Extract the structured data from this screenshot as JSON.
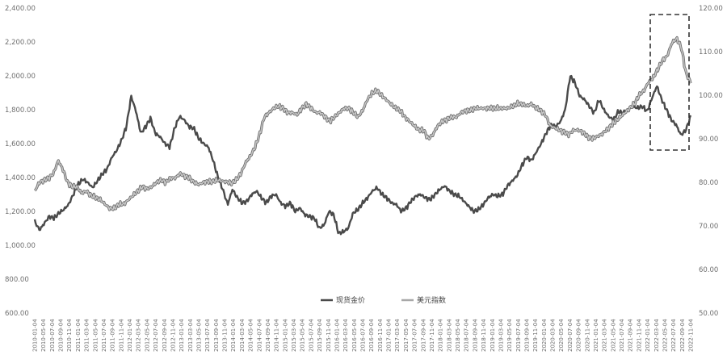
{
  "chart_data": {
    "type": "line",
    "title": "",
    "xlabel": "",
    "ylabel_left": "",
    "ylabel_right": "",
    "ylim_left": [
      600,
      2400
    ],
    "ylim_right": [
      50,
      120
    ],
    "grid": false,
    "legend_position": "bottom-center",
    "left_ticks": [
      "2,400.00",
      "2,200.00",
      "2,000.00",
      "1,800.00",
      "1,600.00",
      "1,400.00",
      "1,200.00",
      "1,000.00",
      "800.00",
      "600.00"
    ],
    "right_ticks": [
      "120.00",
      "110.00",
      "100.00",
      "90.00",
      "80.00",
      "70.00",
      "60.00",
      "50.00"
    ],
    "x_ticks": [
      "2010-01-04",
      "2010-05-04",
      "2010-07-04",
      "2010-09-04",
      "2010-11-04",
      "2011-01-04",
      "2011-03-04",
      "2011-05-04",
      "2011-07-04",
      "2011-09-04",
      "2011-11-04",
      "2012-01-04",
      "2012-03-04",
      "2012-05-04",
      "2012-07-04",
      "2012-09-04",
      "2012-11-04",
      "2013-01-04",
      "2013-03-04",
      "2013-05-04",
      "2013-07-04",
      "2013-09-04",
      "2013-11-04",
      "2014-01-04",
      "2014-03-04",
      "2014-05-04",
      "2014-07-04",
      "2014-09-04",
      "2014-11-04",
      "2015-01-04",
      "2015-03-04",
      "2015-05-04",
      "2015-07-04",
      "2015-09-04",
      "2015-11-04",
      "2016-01-04",
      "2016-03-04",
      "2016-05-04",
      "2016-07-04",
      "2016-09-04",
      "2016-11-04",
      "2017-01-04",
      "2017-03-04",
      "2017-05-04",
      "2017-07-04",
      "2017-09-04",
      "2017-11-04",
      "2018-01-04",
      "2018-03-04",
      "2018-05-04",
      "2018-07-04",
      "2018-09-04",
      "2018-11-04",
      "2019-01-04",
      "2019-03-04",
      "2019-05-04",
      "2019-07-04",
      "2019-09-04",
      "2019-11-04",
      "2020-01-04",
      "2020-03-04",
      "2020-05-04",
      "2020-07-04",
      "2020-09-04",
      "2020-11-04",
      "2021-01-04",
      "2021-03-04",
      "2021-05-04",
      "2021-07-04",
      "2021-09-04",
      "2021-11-04",
      "2022-01-04",
      "2022-03-04",
      "2022-05-04",
      "2022-07-04",
      "2022-09-04",
      "2022-11-04"
    ],
    "series": [
      {
        "name": "现货金价",
        "axis": "left",
        "color": "#4a4a4a",
        "values": [
          1140,
          1090,
          1130,
          1170,
          1160,
          1190,
          1210,
          1240,
          1300,
          1360,
          1390,
          1370,
          1340,
          1380,
          1420,
          1450,
          1520,
          1560,
          1620,
          1700,
          1880,
          1790,
          1660,
          1700,
          1750,
          1660,
          1640,
          1600,
          1580,
          1690,
          1760,
          1740,
          1700,
          1690,
          1630,
          1600,
          1580,
          1500,
          1400,
          1330,
          1240,
          1330,
          1280,
          1250,
          1260,
          1300,
          1320,
          1280,
          1250,
          1290,
          1300,
          1250,
          1230,
          1250,
          1200,
          1220,
          1180,
          1170,
          1160,
          1100,
          1120,
          1200,
          1180,
          1070,
          1080,
          1100,
          1190,
          1210,
          1250,
          1280,
          1320,
          1340,
          1300,
          1280,
          1250,
          1240,
          1200,
          1220,
          1260,
          1290,
          1300,
          1280,
          1270,
          1300,
          1330,
          1350,
          1320,
          1300,
          1290,
          1260,
          1230,
          1200,
          1210,
          1240,
          1280,
          1300,
          1290,
          1300,
          1350,
          1380,
          1410,
          1470,
          1520,
          1500,
          1550,
          1600,
          1660,
          1710,
          1700,
          1730,
          1800,
          2000,
          1960,
          1880,
          1860,
          1820,
          1780,
          1860,
          1800,
          1760,
          1740,
          1790,
          1780,
          1800,
          1820,
          1810,
          1820,
          1790,
          1870,
          1940,
          1860,
          1800,
          1740,
          1710,
          1650,
          1680,
          1760
        ]
      },
      {
        "name": "美元指数",
        "axis": "right",
        "color": "#a8a8a8",
        "values": [
          78,
          80,
          80.5,
          81,
          82,
          85,
          83,
          80,
          79,
          79,
          77.5,
          78,
          77,
          76.5,
          76,
          75,
          74,
          74,
          75,
          75,
          76,
          77,
          78,
          79,
          78.5,
          79,
          80,
          80.5,
          80,
          81,
          81,
          82,
          81.5,
          81,
          80,
          79.5,
          80,
          80.2,
          80.2,
          80.5,
          80.3,
          80.1,
          79.8,
          80.5,
          82,
          84.5,
          86,
          88,
          91,
          95,
          96,
          97,
          97.5,
          97,
          96,
          96,
          95.5,
          97,
          98,
          97,
          96,
          96,
          95,
          94,
          95,
          96,
          97,
          97,
          96,
          95,
          96.5,
          99,
          100.5,
          101,
          100,
          99,
          98,
          97,
          96.5,
          95,
          94,
          93,
          92,
          92,
          90,
          91,
          93,
          94,
          94.5,
          95,
          95,
          96,
          96.5,
          96.5,
          97,
          97,
          97,
          97,
          97,
          97,
          97,
          97,
          97.5,
          98,
          98,
          97.5,
          98,
          97,
          96.5,
          95.5,
          93,
          92.5,
          92,
          91.5,
          91,
          92,
          92,
          91.5,
          90.5,
          90,
          90.5,
          91,
          92,
          93,
          94,
          95,
          96,
          97,
          98,
          100,
          101,
          103,
          104,
          106,
          108,
          109,
          112,
          113,
          111,
          105,
          103
        ]
      }
    ]
  },
  "legend": {
    "gold_label": "现货金价",
    "dxy_label": "美元指数"
  }
}
